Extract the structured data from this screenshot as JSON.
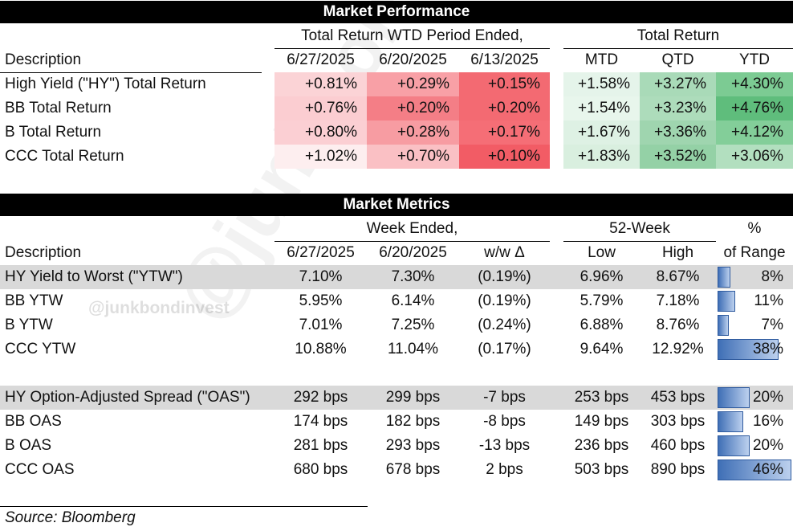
{
  "market_performance": {
    "title": "Market Performance",
    "group_wtd": "Total Return WTD Period Ended,",
    "group_total": "Total Return",
    "desc_label": "Description",
    "columns": [
      "6/27/2025",
      "6/20/2025",
      "6/13/2025",
      "MTD",
      "QTD",
      "YTD"
    ],
    "rows": [
      {
        "label": "High Yield (\"HY\") Total Return",
        "values": [
          "+0.81%",
          "+0.29%",
          "+0.15%",
          "+1.58%",
          "+3.27%",
          "+4.30%"
        ]
      },
      {
        "label": "BB Total Return",
        "values": [
          "+0.76%",
          "+0.20%",
          "+0.20%",
          "+1.54%",
          "+3.23%",
          "+4.76%"
        ]
      },
      {
        "label": "B Total Return",
        "values": [
          "+0.80%",
          "+0.28%",
          "+0.17%",
          "+1.67%",
          "+3.36%",
          "+4.12%"
        ]
      },
      {
        "label": "CCC Total Return",
        "values": [
          "+1.02%",
          "+0.70%",
          "+0.10%",
          "+1.83%",
          "+3.52%",
          "+3.06%"
        ]
      }
    ],
    "colors": {
      "red": [
        [
          "#fbd3d6",
          "#f8a0a6",
          "#f36a72"
        ],
        [
          "#fbcdd1",
          "#f47e86",
          "#f36a72"
        ],
        [
          "#fbcfd3",
          "#f79ca2",
          "#f56e76"
        ],
        [
          "#fdeeef",
          "#fac0c4",
          "#f25c65"
        ]
      ],
      "green": [
        [
          "#e5f4ea",
          "#a9dab8",
          "#7ccb93"
        ],
        [
          "#e8f6ec",
          "#addcbb",
          "#5fbd7c"
        ],
        [
          "#def1e4",
          "#9fd5af",
          "#83ce99"
        ],
        [
          "#d9efdf",
          "#94d1a6",
          "#b2dfbf"
        ]
      ]
    }
  },
  "market_metrics": {
    "title": "Market Metrics",
    "group_week": "Week Ended,",
    "group_52": "52-Week",
    "pct_label": "%",
    "desc_label": "Description",
    "columns": [
      "6/27/2025",
      "6/20/2025",
      "w/w Δ",
      "Low",
      "High",
      "of Range"
    ],
    "yield_rows": [
      {
        "label": "HY Yield to Worst (\"YTW\")",
        "values": [
          "7.10%",
          "7.30%",
          "(0.19%)",
          "6.96%",
          "8.67%"
        ],
        "range": "8%",
        "range_frac": 0.08
      },
      {
        "label": "BB YTW",
        "values": [
          "5.95%",
          "6.14%",
          "(0.19%)",
          "5.79%",
          "7.18%"
        ],
        "range": "11%",
        "range_frac": 0.11
      },
      {
        "label": "B YTW",
        "values": [
          "7.01%",
          "7.25%",
          "(0.24%)",
          "6.88%",
          "8.76%"
        ],
        "range": "7%",
        "range_frac": 0.07
      },
      {
        "label": "CCC YTW",
        "values": [
          "10.88%",
          "11.04%",
          "(0.17%)",
          "9.64%",
          "12.92%"
        ],
        "range": "38%",
        "range_frac": 0.38
      }
    ],
    "spread_rows": [
      {
        "label": "HY Option-Adjusted Spread (\"OAS\")",
        "values": [
          "292 bps",
          "299 bps",
          "-7 bps",
          "253 bps",
          "453 bps"
        ],
        "range": "20%",
        "range_frac": 0.2
      },
      {
        "label": "BB OAS",
        "values": [
          "174 bps",
          "182 bps",
          "-8 bps",
          "149 bps",
          "303 bps"
        ],
        "range": "16%",
        "range_frac": 0.16
      },
      {
        "label": "B OAS",
        "values": [
          "281 bps",
          "293 bps",
          "-13 bps",
          "236 bps",
          "460 bps"
        ],
        "range": "20%",
        "range_frac": 0.2
      },
      {
        "label": "CCC OAS",
        "values": [
          "680 bps",
          "678 bps",
          "2 bps",
          "503 bps",
          "890 bps"
        ],
        "range": "46%",
        "range_frac": 0.46
      }
    ]
  },
  "watermark": "@junkbondinvest",
  "source": "Source: Bloomberg"
}
